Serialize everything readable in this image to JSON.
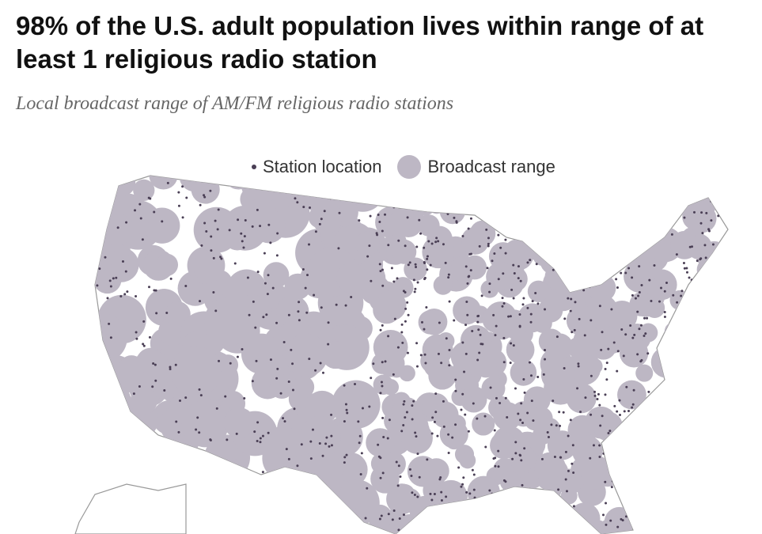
{
  "header": {
    "title": "98% of the U.S. adult population lives within range of at least 1 religious radio station",
    "subtitle": "Local broadcast range of AM/FM religious radio stations"
  },
  "legend": {
    "items": [
      {
        "label": "Station location"
      },
      {
        "label": "Broadcast range"
      }
    ]
  }
}
